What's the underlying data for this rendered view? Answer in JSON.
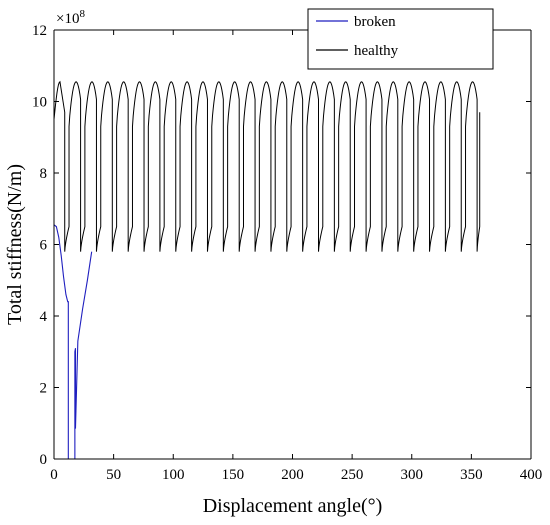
{
  "chart_data": {
    "type": "line",
    "xlabel": "Displacement angle(°)",
    "ylabel": "Total stiffness(N/m)",
    "xlim": [
      0,
      400
    ],
    "ylim": [
      0,
      12
    ],
    "y_exponent_label": "×10",
    "y_exponent_power": "8",
    "x_ticks": [
      0,
      50,
      100,
      150,
      200,
      250,
      300,
      350,
      400
    ],
    "y_ticks": [
      0,
      2,
      4,
      6,
      8,
      10,
      12
    ],
    "x_tick_labels": [
      "0",
      "50",
      "100",
      "150",
      "200",
      "250",
      "300",
      "350",
      "400"
    ],
    "y_tick_labels": [
      "0",
      "2",
      "4",
      "6",
      "8",
      "10",
      "12"
    ],
    "grid": false,
    "legend_position": "top-right",
    "legend": [
      "broken",
      "healthy"
    ],
    "colors": {
      "broken": "#1f1fbf",
      "healthy": "#000000"
    },
    "healthy_mesh": {
      "start_angle": 0,
      "end_angle": 360,
      "period": 18,
      "rise_end_offset": 3.6,
      "peak_offset": 9.5,
      "drop_offset": 13.3,
      "start_value": 9.5,
      "low_value": 5.8,
      "rise_value": 6.5,
      "peak_value": 10.55,
      "fall_value": 9.7,
      "end_value": 9.7
    },
    "series": [
      {
        "name": "broken",
        "x": [
          0,
          2,
          4,
          6,
          8,
          10,
          11.5,
          12,
          12,
          13,
          13,
          17.5,
          17.5,
          18,
          18,
          20,
          24,
          28,
          31.6
        ],
        "y": [
          6.55,
          6.5,
          6.2,
          5.7,
          5.1,
          4.6,
          4.4,
          4.4,
          0,
          0,
          0,
          0,
          3.0,
          3.1,
          0.85,
          3.3,
          4.2,
          5.0,
          5.8
        ]
      }
    ]
  }
}
